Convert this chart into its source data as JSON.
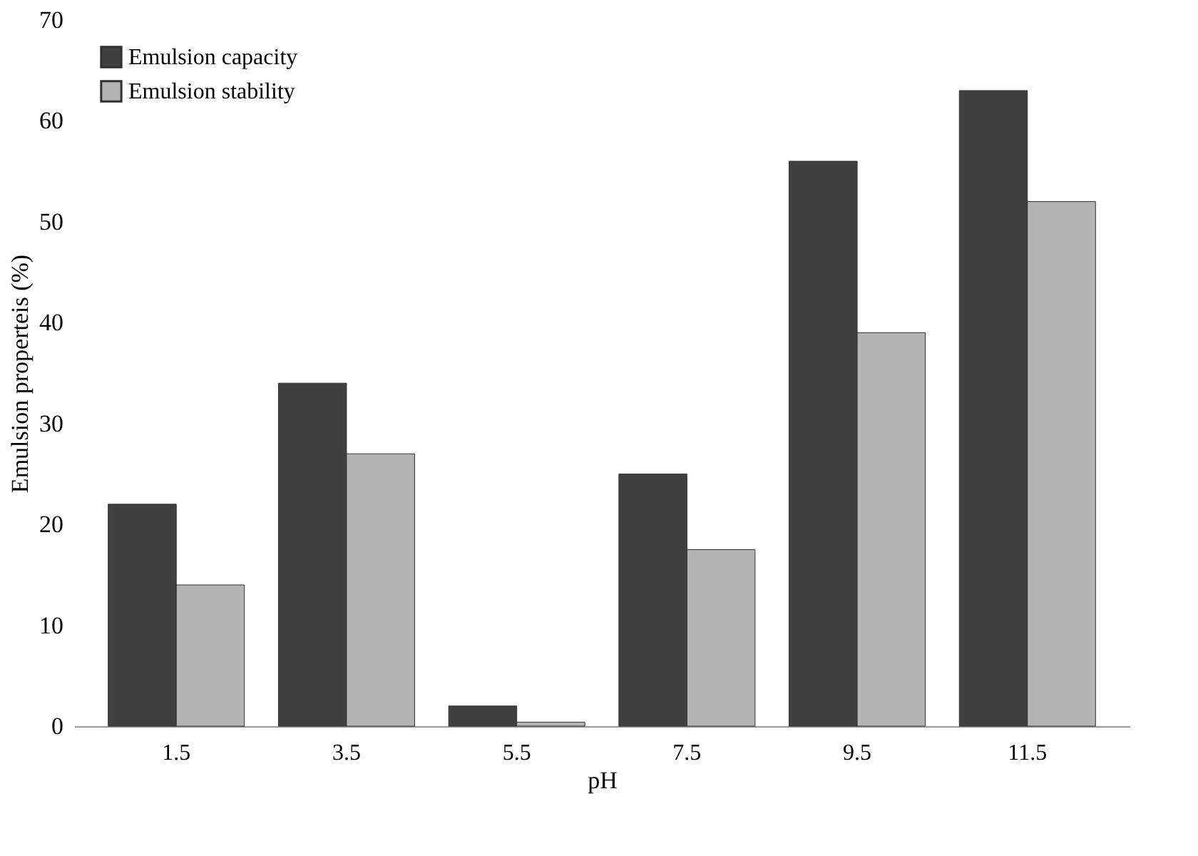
{
  "chart_data": {
    "type": "bar",
    "xlabel": "pH",
    "ylabel": "Emulsion properteis (%)",
    "categories": [
      "1.5",
      "3.5",
      "5.5",
      "7.5",
      "9.5",
      "11.5"
    ],
    "series": [
      {
        "name": "Emulsion capacity",
        "color": "#404040",
        "values": [
          22,
          34,
          2,
          25,
          56,
          63
        ]
      },
      {
        "name": "Emulsion stability",
        "color": "#b4b4b4",
        "values": [
          14,
          27,
          0.4,
          17.5,
          39,
          52
        ]
      }
    ],
    "ylim": [
      0,
      70
    ],
    "yticks": [
      0,
      10,
      20,
      30,
      40,
      50,
      60,
      70
    ],
    "grid": false,
    "legend": "top left"
  }
}
